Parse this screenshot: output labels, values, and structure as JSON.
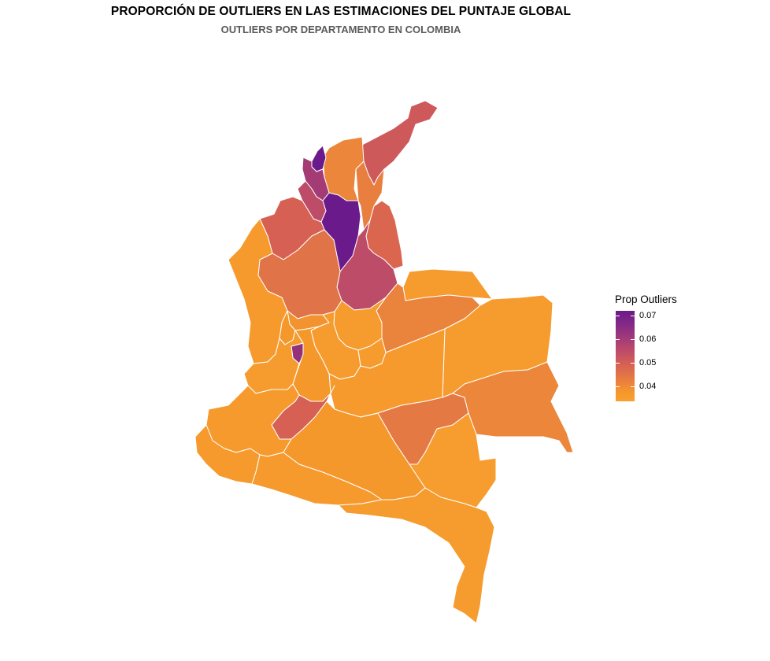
{
  "title": "PROPORCIÓN DE OUTLIERS EN LAS ESTIMACIONES DEL PUNTAJE GLOBAL",
  "subtitle": "OUTLIERS POR DEPARTAMENTO EN COLOMBIA",
  "legend": {
    "title": "Prop Outliers",
    "ticks": [
      "0.07",
      "0.06",
      "0.05",
      "0.04"
    ],
    "range": [
      0.036,
      0.073
    ],
    "colors": {
      "high": "#6a1a8a",
      "mid": "#d55e56",
      "low": "#f8a032"
    }
  },
  "chart_data": {
    "type": "choropleth",
    "value_range": [
      0.036,
      0.073
    ],
    "regions": [
      {
        "name": "La Guajira",
        "value": 0.058
      },
      {
        "name": "Magdalena",
        "value": 0.049
      },
      {
        "name": "Cesar",
        "value": 0.051
      },
      {
        "name": "Atlántico",
        "value": 0.073
      },
      {
        "name": "Bolívar norte",
        "value": 0.066
      },
      {
        "name": "Sucre",
        "value": 0.062
      },
      {
        "name": "Bolívar sur",
        "value": 0.073
      },
      {
        "name": "Córdoba",
        "value": 0.056
      },
      {
        "name": "Norte de Santander",
        "value": 0.055
      },
      {
        "name": "Santander",
        "value": 0.062
      },
      {
        "name": "Antioquia",
        "value": 0.053
      },
      {
        "name": "Chocó",
        "value": 0.042
      },
      {
        "name": "Arauca",
        "value": 0.041
      },
      {
        "name": "Casanare",
        "value": 0.05
      },
      {
        "name": "Vichada",
        "value": 0.04
      },
      {
        "name": "Boyacá",
        "value": 0.041
      },
      {
        "name": "Caldas",
        "value": 0.045
      },
      {
        "name": "Risaralda",
        "value": 0.043
      },
      {
        "name": "Quindío",
        "value": 0.068
      },
      {
        "name": "Cundinamarca",
        "value": 0.04
      },
      {
        "name": "Bogotá",
        "value": 0.041
      },
      {
        "name": "Meta",
        "value": 0.042
      },
      {
        "name": "Tolima",
        "value": 0.043
      },
      {
        "name": "Valle del Cauca",
        "value": 0.04
      },
      {
        "name": "Huila",
        "value": 0.056
      },
      {
        "name": "Cauca",
        "value": 0.042
      },
      {
        "name": "Nariño",
        "value": 0.042
      },
      {
        "name": "Putumayo",
        "value": 0.042
      },
      {
        "name": "Caquetá",
        "value": 0.043
      },
      {
        "name": "Guaviare",
        "value": 0.052
      },
      {
        "name": "Guainía",
        "value": 0.049
      },
      {
        "name": "Vaupés",
        "value": 0.039
      },
      {
        "name": "Amazonas",
        "value": 0.041
      }
    ]
  }
}
